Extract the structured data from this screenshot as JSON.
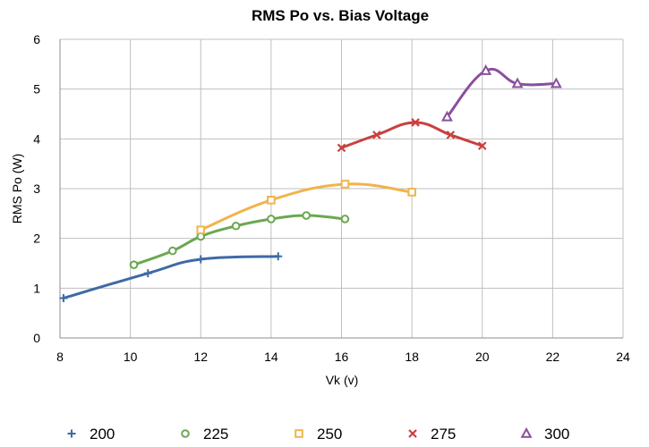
{
  "chart_data": {
    "type": "scatter",
    "title": "RMS Po vs. Bias Voltage",
    "xlabel": "Vk (v)",
    "ylabel": "RMS Po (W)",
    "xlim": [
      8,
      24
    ],
    "ylim": [
      0,
      6
    ],
    "xticks": [
      "8",
      "10",
      "12",
      "14",
      "16",
      "18",
      "20",
      "22",
      "24"
    ],
    "yticks": [
      "0",
      "1",
      "2",
      "3",
      "4",
      "5",
      "6"
    ],
    "grid": true,
    "smooth_lines": true,
    "legend_position": "bottom",
    "series": [
      {
        "name": "200",
        "marker": "plus",
        "color": "#3d6aa5",
        "points": [
          [
            8.1,
            0.8
          ],
          [
            10.5,
            1.3
          ],
          [
            12.0,
            1.58
          ],
          [
            14.2,
            1.64
          ]
        ]
      },
      {
        "name": "225",
        "marker": "circle",
        "color": "#6aa84f",
        "points": [
          [
            10.1,
            1.47
          ],
          [
            11.2,
            1.75
          ],
          [
            12.0,
            2.04
          ],
          [
            13.0,
            2.25
          ],
          [
            14.0,
            2.39
          ],
          [
            15.0,
            2.46
          ],
          [
            16.1,
            2.39
          ]
        ]
      },
      {
        "name": "250",
        "marker": "square",
        "color": "#f0b44c",
        "points": [
          [
            12.0,
            2.17
          ],
          [
            14.0,
            2.77
          ],
          [
            16.1,
            3.09
          ],
          [
            18.0,
            2.93
          ]
        ]
      },
      {
        "name": "275",
        "marker": "x",
        "color": "#c94040",
        "points": [
          [
            16.0,
            3.82
          ],
          [
            17.0,
            4.08
          ],
          [
            18.1,
            4.33
          ],
          [
            19.1,
            4.08
          ],
          [
            20.0,
            3.86
          ]
        ]
      },
      {
        "name": "300",
        "marker": "triangle",
        "color": "#8a4f9e",
        "points": [
          [
            19.0,
            4.44
          ],
          [
            20.1,
            5.37
          ],
          [
            21.0,
            5.11
          ],
          [
            22.1,
            5.11
          ]
        ]
      }
    ]
  }
}
